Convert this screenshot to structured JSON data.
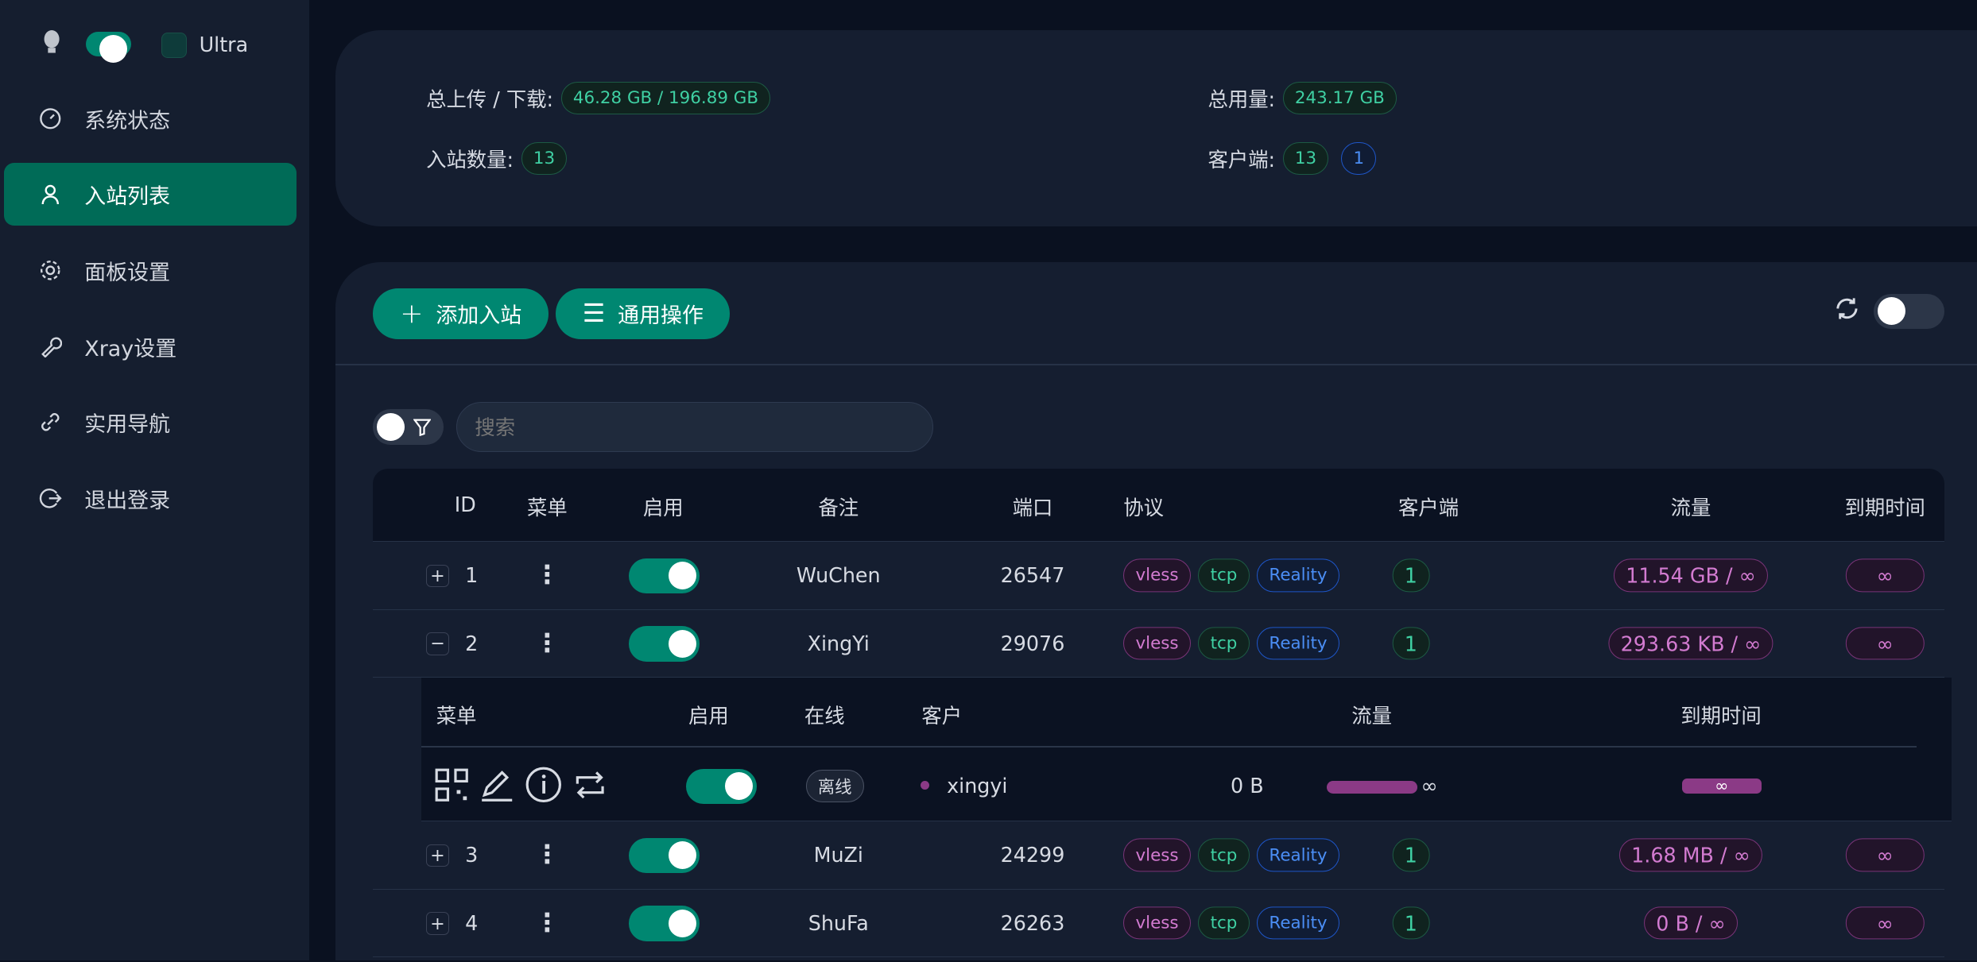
{
  "sidebar": {
    "theme_label": "Ultra",
    "items": [
      {
        "label": "系统状态",
        "icon": "dashboard-icon"
      },
      {
        "label": "入站列表",
        "icon": "user-icon",
        "active": true
      },
      {
        "label": "面板设置",
        "icon": "gear-icon"
      },
      {
        "label": "Xray设置",
        "icon": "wrench-icon"
      },
      {
        "label": "实用导航",
        "icon": "link-icon"
      },
      {
        "label": "退出登录",
        "icon": "logout-icon"
      }
    ]
  },
  "stats": {
    "updown_label": "总上传 / 下载:",
    "updown_value": "46.28 GB / 196.89 GB",
    "total_label": "总用量:",
    "total_value": "243.17 GB",
    "inbound_label": "入站数量:",
    "inbound_value": "13",
    "clients_label": "客户端:",
    "clients_value": "13",
    "clients_online": "1"
  },
  "toolbar": {
    "add_label": "添加入站",
    "general_label": "通用操作",
    "search_placeholder": "搜索"
  },
  "table": {
    "headers": [
      "ID",
      "菜单",
      "启用",
      "备注",
      "端口",
      "协议",
      "客户端",
      "流量",
      "到期时间"
    ],
    "rows": [
      {
        "id": "1",
        "remark": "WuChen",
        "port": "26547",
        "protocol": "vless",
        "network": "tcp",
        "security": "Reality",
        "clients": "1",
        "traffic": "11.54 GB / ∞",
        "expiry": "∞",
        "expanded": false
      },
      {
        "id": "2",
        "remark": "XingYi",
        "port": "29076",
        "protocol": "vless",
        "network": "tcp",
        "security": "Reality",
        "clients": "1",
        "traffic": "293.63 KB / ∞",
        "expiry": "∞",
        "expanded": true
      },
      {
        "id": "3",
        "remark": "MuZi",
        "port": "24299",
        "protocol": "vless",
        "network": "tcp",
        "security": "Reality",
        "clients": "1",
        "traffic": "1.68 MB / ∞",
        "expiry": "∞",
        "expanded": false
      },
      {
        "id": "4",
        "remark": "ShuFa",
        "port": "26263",
        "protocol": "vless",
        "network": "tcp",
        "security": "Reality",
        "clients": "1",
        "traffic": "0 B / ∞",
        "expiry": "∞",
        "expanded": false
      }
    ]
  },
  "clients_table": {
    "headers": [
      "菜单",
      "启用",
      "在线",
      "客户",
      "流量",
      "到期时间"
    ],
    "rows": [
      {
        "status": "离线",
        "email": "xingyi",
        "traffic": "0 B",
        "traffic_limit": "∞",
        "expiry": "∞"
      }
    ]
  },
  "colors": {
    "accent": "#008771",
    "bg": "#0a1120",
    "card": "#151e30"
  }
}
